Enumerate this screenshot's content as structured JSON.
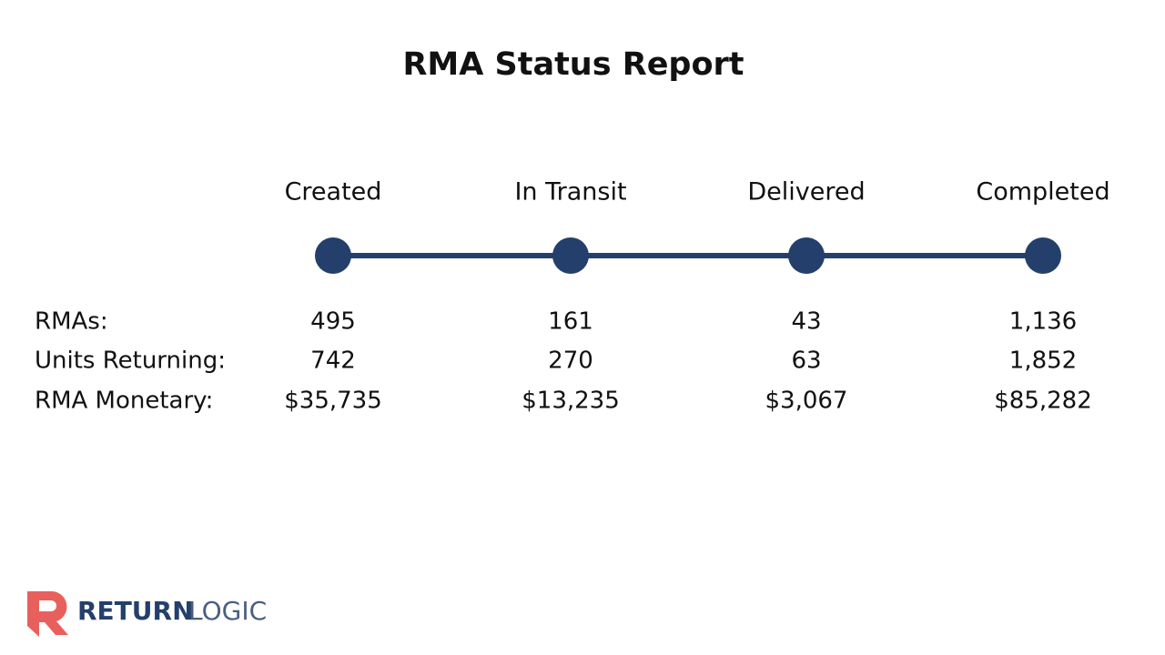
{
  "header": {
    "title": "RMA Status Report"
  },
  "stages": [
    "Created",
    "In Transit",
    "Delivered",
    "Completed"
  ],
  "rows": [
    {
      "label": "RMAs:",
      "values": [
        "495",
        "161",
        "43",
        "1,136"
      ]
    },
    {
      "label": "Units Returning:",
      "values": [
        "742",
        "270",
        "63",
        "1,852"
      ]
    },
    {
      "label": "RMA Monetary:",
      "values": [
        "$35,735",
        "$13,235",
        "$3,067",
        "$85,282"
      ]
    }
  ],
  "logo": {
    "part1": "RETURN",
    "part2": "LOGIC"
  }
}
